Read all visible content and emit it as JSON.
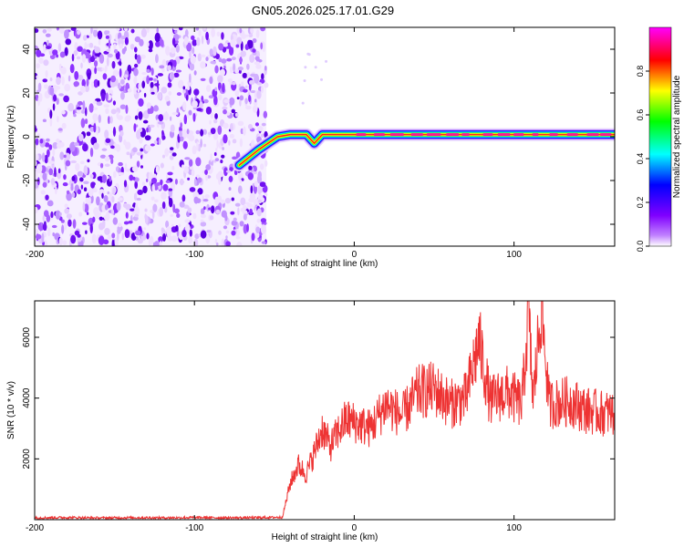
{
  "title": "GN05.2026.025.17.01.G29",
  "chart_data": [
    {
      "type": "heatmap",
      "name": "spectrogram",
      "xlabel": "Height of straight line (km)",
      "ylabel": "Frequency (Hz)",
      "xlim": [
        -200,
        163
      ],
      "ylim": [
        -50,
        50
      ],
      "xticks": [
        -200,
        -100,
        0,
        100
      ],
      "yticks": [
        -40,
        -20,
        0,
        20,
        40
      ],
      "colorbar": {
        "label": "Normalized spectral amplitude",
        "range": [
          0,
          1
        ],
        "ticks": [
          0,
          0.2,
          0.4,
          0.6,
          0.8
        ],
        "tick_labels": [
          "0.0",
          "0.2",
          "0.4",
          "0.6",
          "0.8"
        ],
        "colors": [
          "#ffffff",
          "#8000ff",
          "#0000ff",
          "#00ffff",
          "#00ff00",
          "#ffff00",
          "#ff0000",
          "#ff00ff"
        ]
      },
      "noise_region_x": [
        -200,
        -55
      ],
      "tone_track": [
        [
          -72,
          -13
        ],
        [
          -60,
          -6
        ],
        [
          -48,
          0
        ],
        [
          -40,
          1
        ],
        [
          -30,
          1
        ],
        [
          -25,
          -3
        ],
        [
          -20,
          1
        ],
        [
          0,
          1
        ],
        [
          50,
          1
        ],
        [
          100,
          1
        ],
        [
          163,
          1
        ]
      ]
    },
    {
      "type": "line",
      "name": "snr",
      "xlabel": "Height of straight line (km)",
      "ylabel": "SNR (10 * v/v)",
      "xlim": [
        -200,
        163
      ],
      "ylim": [
        0,
        7200
      ],
      "xticks": [
        -200,
        -100,
        0,
        100
      ],
      "yticks": [
        2000,
        4000,
        6000
      ],
      "color": "#ee3333",
      "series": [
        {
          "x": -200,
          "y": 60
        },
        {
          "x": -180,
          "y": 70
        },
        {
          "x": -160,
          "y": 55
        },
        {
          "x": -140,
          "y": 65
        },
        {
          "x": -120,
          "y": 60
        },
        {
          "x": -100,
          "y": 70
        },
        {
          "x": -80,
          "y": 60
        },
        {
          "x": -60,
          "y": 65
        },
        {
          "x": -45,
          "y": 80
        },
        {
          "x": -40,
          "y": 1200
        },
        {
          "x": -35,
          "y": 1800
        },
        {
          "x": -30,
          "y": 1500
        },
        {
          "x": -25,
          "y": 2200
        },
        {
          "x": -20,
          "y": 3000
        },
        {
          "x": -15,
          "y": 2400
        },
        {
          "x": -10,
          "y": 2900
        },
        {
          "x": -5,
          "y": 3300
        },
        {
          "x": 0,
          "y": 3200
        },
        {
          "x": 10,
          "y": 3000
        },
        {
          "x": 20,
          "y": 3800
        },
        {
          "x": 30,
          "y": 3400
        },
        {
          "x": 40,
          "y": 4200
        },
        {
          "x": 50,
          "y": 4300
        },
        {
          "x": 60,
          "y": 3800
        },
        {
          "x": 70,
          "y": 4000
        },
        {
          "x": 78,
          "y": 5900
        },
        {
          "x": 85,
          "y": 3900
        },
        {
          "x": 95,
          "y": 4200
        },
        {
          "x": 105,
          "y": 3800
        },
        {
          "x": 109,
          "y": 6800
        },
        {
          "x": 112,
          "y": 3900
        },
        {
          "x": 117,
          "y": 7100
        },
        {
          "x": 122,
          "y": 3800
        },
        {
          "x": 135,
          "y": 3900
        },
        {
          "x": 145,
          "y": 3600
        },
        {
          "x": 155,
          "y": 3500
        },
        {
          "x": 163,
          "y": 3500
        }
      ]
    }
  ]
}
